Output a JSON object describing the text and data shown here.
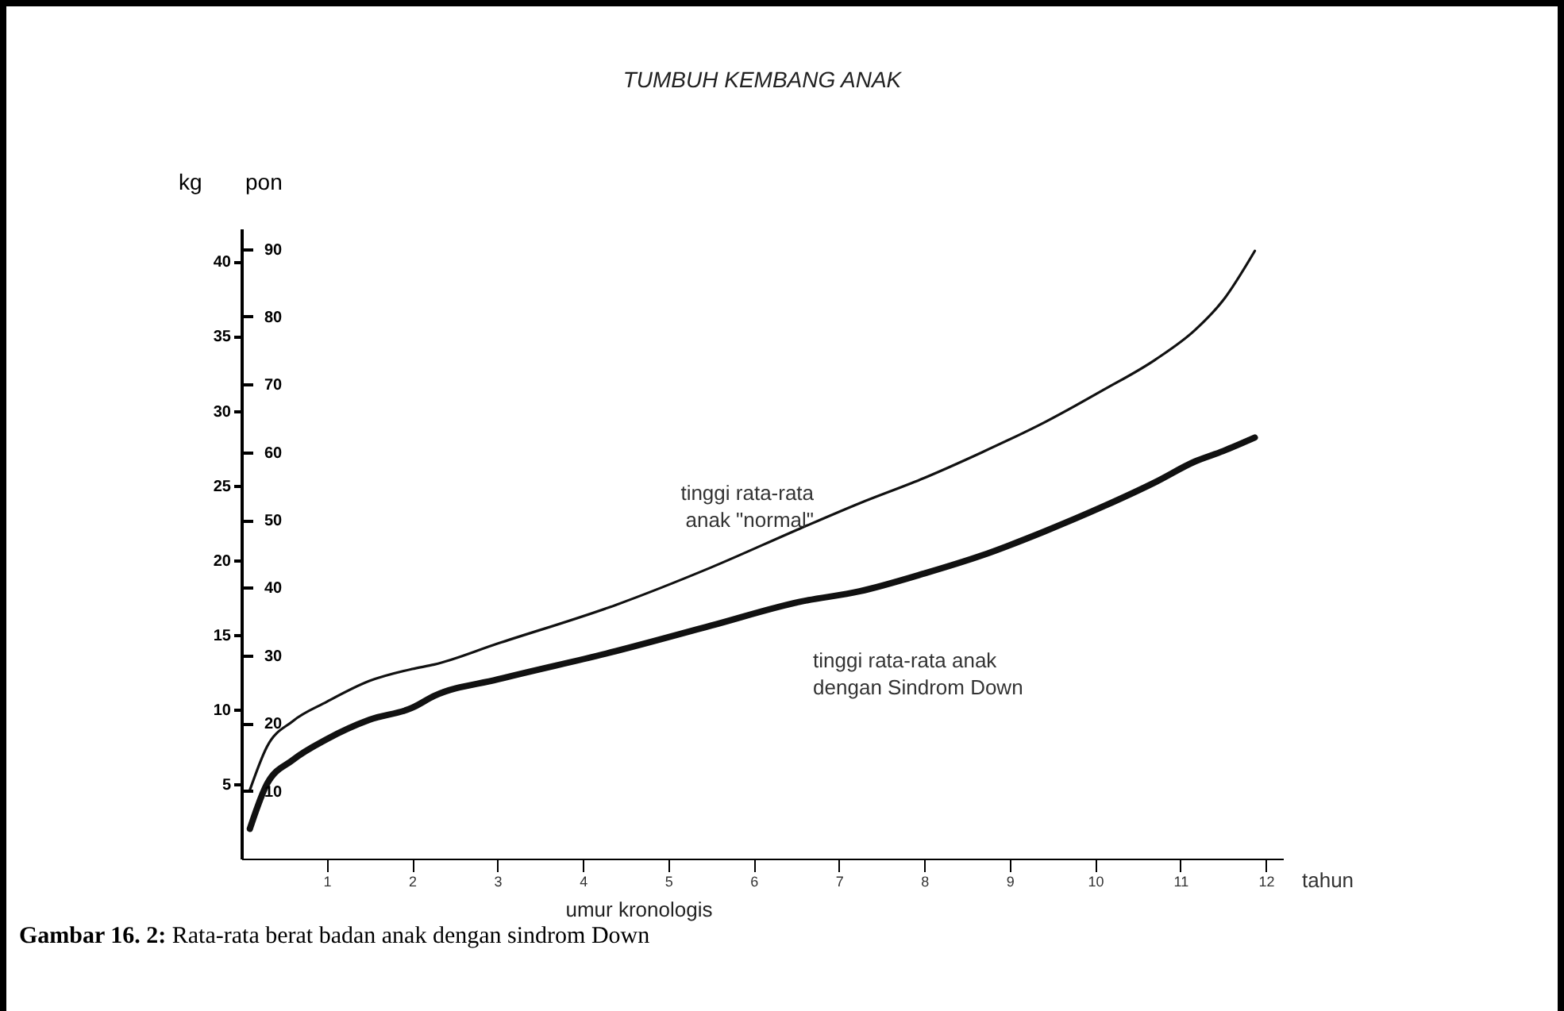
{
  "chart_data": {
    "type": "line",
    "title": "TUMBUH KEMBANG ANAK",
    "xlabel": "umur kronologis",
    "ylabel": "kg",
    "y2label": "pon",
    "x": [
      0.1,
      0.3,
      0.6,
      1,
      1.5,
      2,
      2.26,
      3,
      4.39,
      5.5,
      6.54,
      7.24,
      8,
      8.67,
      9.4,
      10.1,
      10.7,
      11.17,
      11.5,
      11.87
    ],
    "series": [
      {
        "color": "#111111",
        "values": [
          4.6,
          7.5,
          9.2,
          10.5,
          11.9,
          12.7,
          13.0,
          14.4,
          17.0,
          19.5,
          22.1,
          23.8,
          25.5,
          27.2,
          29.2,
          31.4,
          33.4,
          35.4,
          37.4,
          40.7
        ]
      },
      {
        "color": "#111111",
        "values": [
          2.0,
          5.0,
          6.6,
          8.0,
          9.3,
          10.1,
          10.9,
          12.0,
          13.9,
          15.6,
          17.2,
          17.9,
          19.1,
          20.3,
          21.9,
          23.6,
          25.2,
          26.6,
          27.3,
          28.2
        ]
      }
    ],
    "xlim": [
      0,
      12.2
    ],
    "xticks": [
      1,
      2,
      3,
      4,
      5,
      6,
      7,
      8,
      9,
      10,
      11,
      12
    ],
    "ylim": [
      0,
      42.2
    ],
    "yticks": [
      5,
      10,
      15,
      20,
      25,
      30,
      35,
      40
    ],
    "y2lim": [
      0,
      93
    ],
    "y2ticks": [
      10,
      20,
      30,
      40,
      50,
      60,
      70,
      80,
      90
    ],
    "grid": false,
    "marker": "none",
    "annotations": [
      {
        "text": "tinggi rata-rata\nanak \"normal\"",
        "x": 7.17,
        "y": 23.9
      },
      {
        "text": "tinggi rata-rata anak\ndengan Sindrom Down",
        "x": 7.44,
        "y": 17.6
      },
      "tahun",
      "Gambar 16. 2: Rata-rata berat badan anak dengan sindrom Down"
    ]
  }
}
